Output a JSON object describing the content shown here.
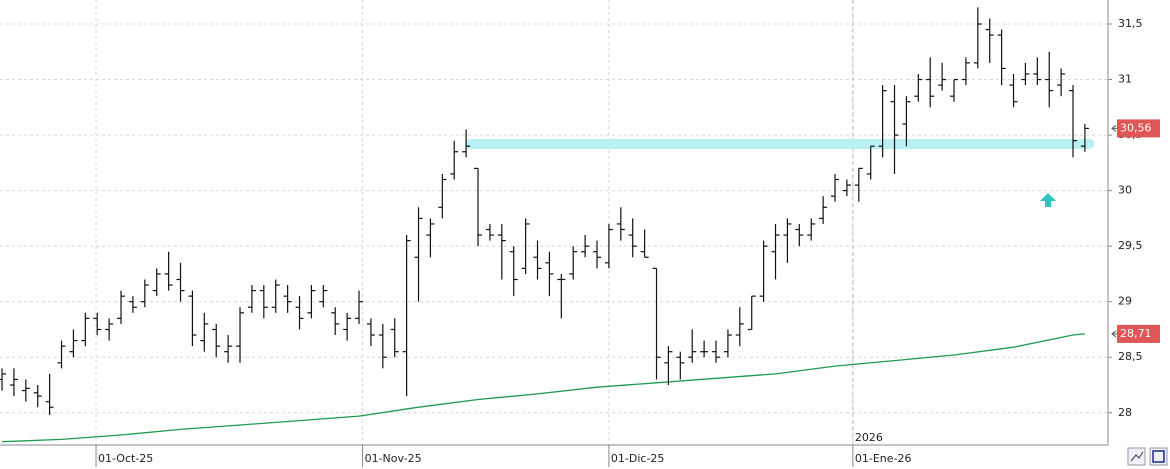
{
  "chart_data": {
    "type": "ohlc",
    "x": [
      0,
      1,
      2,
      3,
      4,
      5,
      6,
      7,
      8,
      9,
      10,
      11,
      12,
      13,
      14,
      15,
      16,
      17,
      18,
      19,
      20,
      21,
      22,
      23,
      24,
      25,
      26,
      27,
      28,
      29,
      30,
      31,
      32,
      33,
      34,
      35,
      36,
      37,
      38,
      39,
      40,
      41,
      42,
      43,
      44,
      45,
      46,
      47,
      48,
      49,
      50,
      51,
      52,
      53,
      54,
      55,
      56,
      57,
      58,
      59,
      60,
      61,
      62,
      63,
      64,
      65,
      66,
      67,
      68,
      69,
      70,
      71,
      72,
      73,
      74,
      75,
      76,
      77,
      78,
      79,
      80,
      81,
      82,
      83,
      84,
      85,
      86,
      87,
      88,
      89,
      90,
      91
    ],
    "open": [
      28.3,
      28.25,
      28.2,
      28.18,
      28.1,
      28.45,
      28.55,
      28.65,
      28.85,
      28.75,
      28.85,
      29.0,
      29.0,
      29.1,
      29.25,
      29.2,
      29.05,
      28.65,
      28.75,
      28.55,
      28.6,
      28.95,
      29.1,
      28.95,
      29.05,
      28.95,
      28.9,
      29.0,
      28.9,
      28.75,
      28.85,
      28.8,
      28.7,
      28.75,
      28.55,
      29.4,
      29.6,
      29.85,
      30.15,
      30.35,
      30.2,
      29.65,
      29.6,
      29.45,
      29.3,
      29.4,
      29.35,
      29.2,
      29.25,
      29.45,
      29.45,
      29.35,
      29.7,
      29.6,
      29.45,
      29.3,
      28.45,
      28.5,
      28.5,
      28.55,
      28.55,
      28.55,
      28.7,
      28.75,
      29.05,
      29.45,
      29.6,
      29.65,
      29.6,
      29.75,
      29.95,
      30.0,
      30.05,
      30.15,
      30.4,
      30.8,
      30.6,
      30.85,
      31.0,
      30.95,
      30.85,
      31.0,
      31.15,
      31.45,
      31.4,
      30.95,
      31.0,
      31.05,
      31.0,
      30.95,
      30.9,
      30.4
    ],
    "high": [
      28.4,
      28.4,
      28.3,
      28.25,
      28.35,
      28.65,
      28.75,
      28.9,
      28.9,
      28.85,
      29.1,
      29.05,
      29.2,
      29.3,
      29.45,
      29.35,
      29.1,
      28.9,
      28.8,
      28.7,
      28.95,
      29.15,
      29.15,
      29.2,
      29.15,
      29.05,
      29.15,
      29.15,
      28.95,
      28.9,
      29.1,
      28.85,
      28.8,
      28.85,
      29.6,
      29.85,
      29.75,
      30.15,
      30.45,
      30.55,
      30.2,
      29.7,
      29.7,
      29.5,
      29.75,
      29.55,
      29.45,
      29.25,
      29.5,
      29.6,
      29.55,
      29.7,
      29.85,
      29.75,
      29.65,
      29.3,
      28.6,
      28.55,
      28.75,
      28.65,
      28.65,
      28.75,
      28.95,
      29.05,
      29.55,
      29.7,
      29.75,
      29.7,
      29.75,
      29.95,
      30.15,
      30.1,
      30.2,
      30.4,
      30.95,
      30.95,
      30.85,
      31.05,
      31.2,
      31.15,
      31.0,
      31.2,
      31.65,
      31.55,
      31.45,
      31.05,
      31.15,
      31.2,
      31.25,
      31.1,
      30.95,
      30.6
    ],
    "low": [
      28.2,
      28.15,
      28.1,
      28.05,
      27.98,
      28.4,
      28.5,
      28.6,
      28.7,
      28.65,
      28.8,
      28.9,
      28.95,
      29.05,
      29.1,
      29.0,
      28.6,
      28.55,
      28.5,
      28.45,
      28.45,
      28.9,
      28.85,
      28.9,
      28.9,
      28.75,
      28.85,
      28.95,
      28.7,
      28.65,
      28.8,
      28.6,
      28.4,
      28.5,
      28.15,
      29.0,
      29.4,
      29.75,
      30.1,
      30.3,
      29.5,
      29.55,
      29.2,
      29.05,
      29.25,
      29.2,
      29.05,
      28.85,
      29.2,
      29.4,
      29.3,
      29.3,
      29.55,
      29.4,
      29.4,
      28.3,
      28.25,
      28.3,
      28.45,
      28.5,
      28.45,
      28.5,
      28.6,
      28.75,
      29.0,
      29.2,
      29.35,
      29.5,
      29.55,
      29.7,
      29.9,
      29.95,
      29.9,
      30.1,
      30.3,
      30.15,
      30.4,
      30.8,
      30.75,
      30.9,
      30.8,
      30.95,
      31.1,
      31.15,
      30.95,
      30.75,
      30.95,
      30.95,
      30.75,
      30.85,
      30.3,
      30.35
    ],
    "close": [
      28.35,
      28.3,
      28.22,
      28.15,
      28.05,
      28.6,
      28.65,
      28.85,
      28.75,
      28.8,
      29.05,
      28.95,
      29.15,
      29.25,
      29.15,
      29.1,
      28.7,
      28.8,
      28.6,
      28.6,
      28.9,
      29.1,
      28.95,
      29.15,
      29.0,
      28.85,
      29.1,
      29.1,
      28.8,
      28.85,
      29.0,
      28.7,
      28.5,
      28.55,
      29.55,
      29.75,
      29.7,
      30.1,
      30.35,
      30.4,
      29.6,
      29.6,
      29.55,
      29.2,
      29.7,
      29.3,
      29.25,
      29.2,
      29.45,
      29.5,
      29.4,
      29.65,
      29.65,
      29.5,
      29.4,
      28.5,
      28.55,
      28.45,
      28.55,
      28.55,
      28.5,
      28.7,
      28.8,
      29.05,
      29.5,
      29.6,
      29.7,
      29.6,
      29.7,
      29.85,
      30.1,
      30.05,
      30.2,
      30.4,
      30.9,
      30.5,
      30.8,
      31.0,
      30.85,
      31.0,
      31.0,
      31.15,
      31.5,
      31.4,
      31.1,
      30.8,
      31.05,
      31.0,
      30.9,
      31.05,
      30.45,
      30.56
    ],
    "color": "#111111",
    "overlay": {
      "color": "#1f9a4f",
      "x": [
        0,
        5,
        10,
        15,
        20,
        25,
        30,
        35,
        40,
        45,
        50,
        55,
        60,
        65,
        70,
        75,
        80,
        85,
        90,
        91
      ],
      "values": [
        27.74,
        27.76,
        27.8,
        27.85,
        27.89,
        27.93,
        27.97,
        28.05,
        28.12,
        28.17,
        28.23,
        28.27,
        28.31,
        28.35,
        28.42,
        28.47,
        28.52,
        28.59,
        28.7,
        28.71
      ]
    },
    "band": {
      "value": 30.42,
      "x": [
        38.9,
        91.8
      ],
      "color": "#b8f0f4"
    },
    "last_price": {
      "value": 30.56,
      "label": "30,56"
    },
    "overlay_last": {
      "value": 28.71,
      "label": "28,71"
    },
    "year_marker": {
      "value": 71.5,
      "label": "2026"
    },
    "xlim": [
      -0.17,
      92.94
    ],
    "xticks": [
      {
        "value": 7.9,
        "label": "01-Oct-25"
      },
      {
        "value": 30.3,
        "label": "01-Nov-25"
      },
      {
        "value": 51.0,
        "label": "01-Dic-25"
      },
      {
        "value": 71.5,
        "label": "01-Ene-26"
      }
    ],
    "ylim": [
      27.71,
      31.716
    ],
    "yticks": [
      28,
      {
        "value": 28.5,
        "label": "28,5"
      },
      29,
      {
        "value": 29.5,
        "label": "29,5"
      },
      30,
      {
        "value": 30.5,
        "label": "30,5"
      },
      31,
      {
        "value": 31.5,
        "label": "31,5"
      }
    ],
    "grid": true
  }
}
